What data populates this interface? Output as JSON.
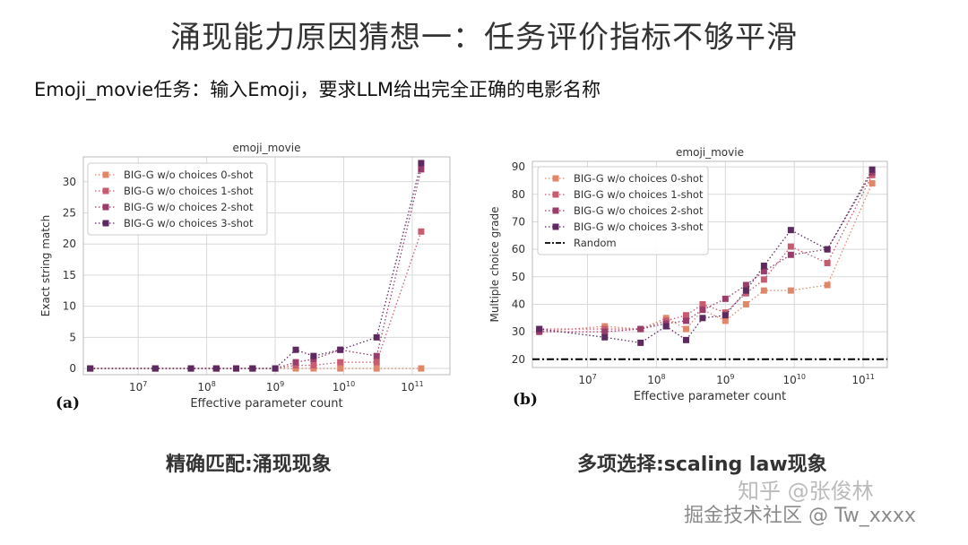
{
  "slide": {
    "title": "涌现能力原因猜想一：任务评价指标不够平滑",
    "subtitle": "Emoji_movie任务：输入Emoji，要求LLM给出完全正确的电影名称",
    "caption_a": "精确匹配:涌现现象",
    "caption_b": "多项选择:scaling law现象",
    "panel_a": "(a)",
    "panel_b": "(b)",
    "watermark": "掘金技术社区 @ Tw_xxxx",
    "watermark_icon": "知乎 @张俊林"
  },
  "colors": {
    "s0": "#e0876a",
    "s1": "#c75c71",
    "s2": "#9a3d6b",
    "s3": "#5c2a5e",
    "random": "#000000",
    "grid": "#d9d9d9"
  },
  "chart_data": [
    {
      "type": "line",
      "title": "emoji_movie",
      "xlabel": "Effective parameter count",
      "ylabel": "Exact string match",
      "xscale": "log",
      "xlim_log10": [
        6.2,
        11.55
      ],
      "ylim": [
        -1,
        34
      ],
      "xticks": [
        7,
        8,
        9,
        10,
        11
      ],
      "yticks": [
        0,
        5,
        10,
        15,
        20,
        25,
        30
      ],
      "legend": "top-left",
      "x_log10": [
        6.3,
        7.25,
        7.77,
        8.14,
        8.43,
        8.67,
        9.0,
        9.3,
        9.56,
        9.95,
        10.48,
        11.13
      ],
      "series": [
        {
          "name": "BIG-G w/o choices 0-shot",
          "color_key": "s0",
          "y": [
            0,
            0,
            0,
            0,
            0,
            0,
            0,
            0,
            0,
            0,
            0,
            0
          ]
        },
        {
          "name": "BIG-G w/o choices 1-shot",
          "color_key": "s1",
          "y": [
            0,
            0,
            0,
            0,
            0,
            0,
            0,
            0.5,
            0.5,
            1,
            1,
            22
          ]
        },
        {
          "name": "BIG-G w/o choices 2-shot",
          "color_key": "s2",
          "y": [
            0,
            0,
            0,
            0,
            0,
            0,
            0,
            1,
            1.5,
            3,
            2,
            32
          ]
        },
        {
          "name": "BIG-G w/o choices 3-shot",
          "color_key": "s3",
          "y": [
            0,
            0,
            0,
            0,
            0,
            0,
            0,
            3,
            2,
            3,
            5,
            33
          ]
        }
      ]
    },
    {
      "type": "line",
      "title": "emoji_movie",
      "xlabel": "Effective parameter count",
      "ylabel": "Multiple choice grade",
      "xscale": "log",
      "xlim_log10": [
        6.2,
        11.35
      ],
      "ylim": [
        17,
        92
      ],
      "xticks": [
        7,
        8,
        9,
        10,
        11
      ],
      "yticks": [
        20,
        30,
        40,
        50,
        60,
        70,
        80,
        90
      ],
      "legend": "top-left",
      "random_baseline": {
        "name": "Random",
        "y": 20
      },
      "x_log10": [
        6.3,
        7.25,
        7.77,
        8.14,
        8.43,
        8.67,
        9.0,
        9.3,
        9.56,
        9.95,
        10.48,
        11.13
      ],
      "series": [
        {
          "name": "BIG-G w/o choices 0-shot",
          "color_key": "s0",
          "y": [
            30,
            32,
            31,
            35,
            31,
            38,
            34,
            40,
            45,
            45,
            47,
            84
          ]
        },
        {
          "name": "BIG-G w/o choices 1-shot",
          "color_key": "s1",
          "y": [
            31,
            31,
            31,
            34,
            36,
            40,
            37,
            44,
            49,
            61,
            55,
            87
          ]
        },
        {
          "name": "BIG-G w/o choices 2-shot",
          "color_key": "s2",
          "y": [
            30,
            30,
            31,
            33,
            34,
            38,
            42,
            47,
            52,
            58,
            60,
            88
          ]
        },
        {
          "name": "BIG-G w/o choices 3-shot",
          "color_key": "s3",
          "y": [
            31,
            28,
            26,
            32,
            27,
            35,
            36,
            45,
            54,
            67,
            60,
            89
          ]
        }
      ]
    }
  ]
}
